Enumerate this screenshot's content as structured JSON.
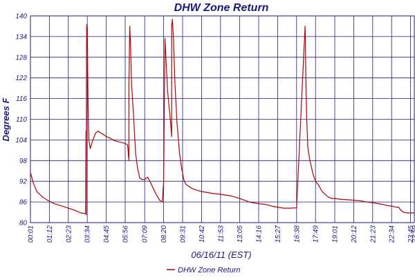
{
  "chart_data": {
    "type": "line",
    "title": "DHW Zone Return",
    "xlabel": "06/16/11 (EST)",
    "ylabel": "Degrees F",
    "ylim": [
      80,
      140
    ],
    "yticks": [
      80,
      86,
      92,
      98,
      104,
      110,
      116,
      122,
      128,
      134,
      140
    ],
    "xticks": [
      "00:01",
      "01:12",
      "02:23",
      "03:34",
      "04:45",
      "05:56",
      "07:09",
      "08:20",
      "09:31",
      "10:42",
      "11:53",
      "13:05",
      "14:16",
      "15:27",
      "16:38",
      "17:49",
      "19:01",
      "20:12",
      "21:23",
      "22:34",
      "23:45",
      "23:59"
    ],
    "grid": true,
    "legend_position": "bottom-center",
    "colors": {
      "line": "#b30000",
      "grid": "#1a1a7a",
      "text": "#1a1a7a"
    },
    "series": [
      {
        "name": "DHW Zone Return",
        "x": [
          "00:01",
          "00:12",
          "00:25",
          "00:45",
          "01:05",
          "01:30",
          "02:00",
          "02:23",
          "02:50",
          "03:10",
          "03:28",
          "03:29",
          "03:30",
          "03:31",
          "03:32",
          "03:34",
          "03:35",
          "03:37",
          "03:40",
          "03:45",
          "03:55",
          "04:05",
          "04:15",
          "04:25",
          "04:30",
          "04:35",
          "04:45",
          "05:00",
          "05:15",
          "05:30",
          "05:45",
          "05:56",
          "06:05",
          "06:10",
          "06:10",
          "06:13",
          "06:16",
          "06:20",
          "06:28",
          "06:35",
          "06:42",
          "06:50",
          "07:00",
          "07:09",
          "07:20",
          "07:35",
          "07:50",
          "08:05",
          "08:15",
          "08:20",
          "08:25",
          "08:35",
          "08:45",
          "08:50",
          "08:50",
          "08:53",
          "08:57",
          "09:02",
          "09:10",
          "09:20",
          "09:25",
          "09:28",
          "09:31",
          "09:33",
          "09:37",
          "09:45",
          "09:55",
          "10:05",
          "10:20",
          "10:42",
          "11:00",
          "11:20",
          "11:53",
          "12:30",
          "13:05",
          "13:40",
          "14:16",
          "14:40",
          "14:55",
          "15:10",
          "15:27",
          "15:50",
          "16:10",
          "16:38",
          "17:10",
          "17:11",
          "17:13",
          "17:16",
          "17:20",
          "17:28",
          "17:40",
          "17:49",
          "18:00",
          "18:10",
          "18:20",
          "18:35",
          "18:50",
          "19:01",
          "19:20",
          "19:40",
          "20:12",
          "20:40",
          "21:00",
          "21:23",
          "21:45",
          "22:00",
          "22:15",
          "22:34",
          "22:50",
          "23:00",
          "23:10",
          "23:20",
          "23:35",
          "23:45",
          "23:59"
        ],
        "y": [
          94.5,
          91.5,
          89,
          87.5,
          86.5,
          85.5,
          84.8,
          84.2,
          83.5,
          82.8,
          82.6,
          106.5,
          82.3,
          130,
          137.5,
          136.5,
          128,
          114,
          104,
          101.5,
          104,
          106,
          106.5,
          106,
          105.8,
          105.5,
          105,
          104.5,
          103.8,
          103.5,
          103.2,
          103,
          102.5,
          98,
          120,
          137,
          132,
          120,
          110,
          100,
          96,
          93,
          92.5,
          92.5,
          93.2,
          91,
          88.5,
          86.5,
          86,
          92,
          133.5,
          118,
          110,
          105,
          137,
          139,
          133,
          121,
          109,
          100,
          97,
          95.5,
          94.5,
          93.5,
          92,
          91,
          90.5,
          90,
          89.5,
          89,
          88.8,
          88.5,
          88.2,
          87.8,
          87,
          86,
          85.5,
          85.3,
          85,
          84.7,
          84.5,
          84.2,
          84.2,
          84.3,
          137,
          134,
          120,
          110,
          102,
          98,
          94,
          92,
          91,
          89.5,
          88.5,
          87.5,
          87,
          87,
          86.8,
          86.7,
          86.5,
          86.3,
          86,
          85.8,
          85.5,
          85.3,
          85,
          84.8,
          84.5,
          84.5,
          83.5,
          83,
          82.8,
          82.8,
          82.8
        ]
      }
    ]
  }
}
